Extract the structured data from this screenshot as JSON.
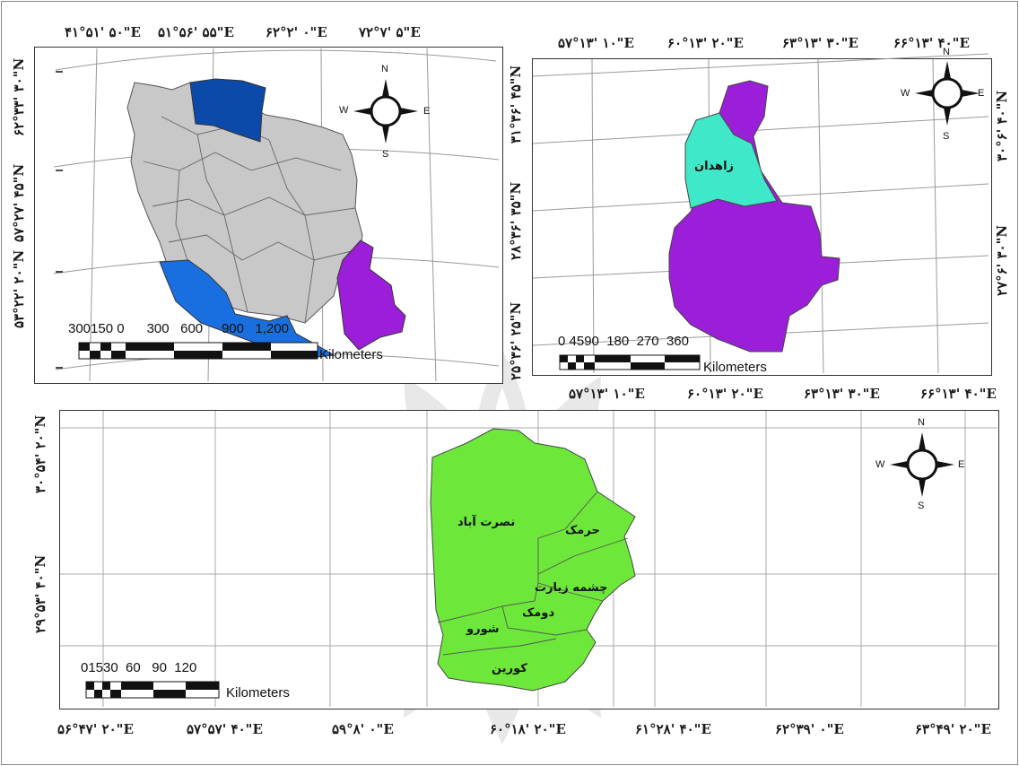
{
  "iran_map": {
    "top_labels": [
      "۴۱°۵۱' ۵۰\"E",
      "۵۱°۵۶' ۵۵\"E",
      "۶۲°۲' ۰\"E",
      "۷۲°۷' ۵\"E"
    ],
    "left_labels": [
      "۶۲°۳۳' ۳۰\"N",
      "۵۷°۲۷' ۴۵\"N",
      "۵۳°۲۲' ۲۰\"N"
    ],
    "scale_numbers": "300150 0      300   600     900   1,200",
    "scale_unit": "Kilometers",
    "north_arrow": {
      "n": "N",
      "s": "S",
      "e": "E",
      "w": "W"
    }
  },
  "province_map": {
    "top_labels": [
      "۵۷°۱۳' ۱۰\"E",
      "۶۰°۱۳' ۲۰\"E",
      "۶۳°۱۳' ۳۰\"E",
      "۶۶°۱۳' ۴۰\"E"
    ],
    "bottom_labels": [
      "۵۷°۱۳' ۱۰\"E",
      "۶۰°۱۳' ۲۰\"E",
      "۶۳°۱۳' ۳۰\"E",
      "۶۶°۱۳' ۴۰\"E"
    ],
    "left_labels": [
      "۳۱°۳۶' ۴۵\"N",
      "۲۸°۳۶' ۳۵\"N",
      "۲۵°۳۶' ۲۵\"N"
    ],
    "right_labels": [
      "۳۰°۶' ۴۰\"N",
      "۲۷°۶' ۳۰\"N"
    ],
    "region_label": "زاهدان",
    "scale_numbers": "0 4590  180  270  360",
    "scale_unit": "Kilometers",
    "north_arrow": {
      "n": "N",
      "s": "S",
      "e": "E",
      "w": "W"
    }
  },
  "county_map": {
    "bottom_labels": [
      "۵۶°۴۷' ۲۰\"E",
      "۵۷°۵۷' ۴۰\"E",
      "۵۹°۸' ۰\"E",
      "۶۰°۱۸' ۲۰\"E",
      "۶۱°۲۸' ۴۰\"E",
      "۶۲°۳۹' ۰\"E",
      "۶۳°۴۹' ۲۰\"E"
    ],
    "left_labels": [
      "۳۰°۵۴' ۲۰\"N",
      "۲۹°۵۳' ۴۰\"N"
    ],
    "districts": [
      "نصرت آباد",
      "حرمک",
      "چشمه زیارت",
      "دومک",
      "شورو",
      "کورین"
    ],
    "scale_numbers": "01530  60   90  120",
    "scale_unit": "Kilometers",
    "north_arrow": {
      "n": "N",
      "s": "S",
      "e": "E",
      "w": "W"
    }
  },
  "colors": {
    "iran_fill": "#c8c8c8",
    "north_province": "#0b4aa8",
    "south_province": "#1a6fe0",
    "sistan_province": "#9b1fd8",
    "zahedan": "#3ee8c8",
    "county": "#6de83a"
  }
}
